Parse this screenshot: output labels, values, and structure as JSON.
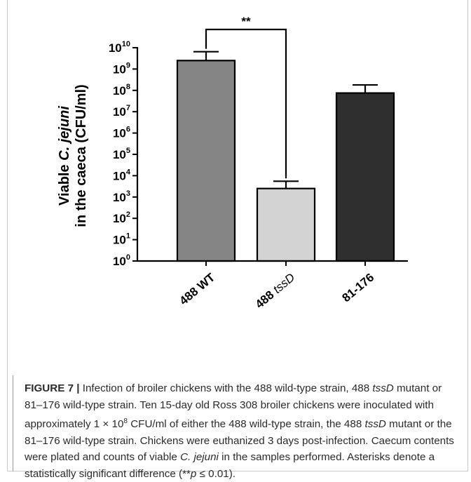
{
  "chart_data": {
    "type": "bar",
    "categories": [
      "488 WT",
      "488 tssD",
      "81-176"
    ],
    "category_parts": [
      {
        "prefix": "488 WT",
        "italic": ""
      },
      {
        "prefix": "488 ",
        "italic": "tssD"
      },
      {
        "prefix": "81-176",
        "italic": ""
      }
    ],
    "values": [
      2500000000.0,
      2500.0,
      75000000.0
    ],
    "error_upper": [
      6500000000.0,
      5500.0,
      180000000.0
    ],
    "bar_colors": [
      "#858585",
      "#d3d3d3",
      "#2f2f2f"
    ],
    "yscale": "log",
    "ylim": [
      1,
      10000000000.0
    ],
    "yticks": [
      {
        "base": "10",
        "exp": "0"
      },
      {
        "base": "10",
        "exp": "1"
      },
      {
        "base": "10",
        "exp": "2"
      },
      {
        "base": "10",
        "exp": "3"
      },
      {
        "base": "10",
        "exp": "4"
      },
      {
        "base": "10",
        "exp": "5"
      },
      {
        "base": "10",
        "exp": "6"
      },
      {
        "base": "10",
        "exp": "7"
      },
      {
        "base": "10",
        "exp": "8"
      },
      {
        "base": "10",
        "exp": "9"
      },
      {
        "base": "10",
        "exp": "10"
      }
    ],
    "ylabel_line1_prefix": "Viable ",
    "ylabel_line1_italic": "C. jejuni",
    "ylabel_line2": "in the caeca (CFU/ml)",
    "significance": {
      "between": [
        0,
        1
      ],
      "label": "**"
    },
    "grid": false,
    "legend": "none"
  },
  "caption": {
    "label": "FIGURE 7 |",
    "t1": " Infection of broiler chickens with the 488 wild-type strain, 488 ",
    "i1": "tssD",
    "t2": " mutant or 81–176 wild-type strain. Ten 15-day old Ross 308 broiler chickens were inoculated with approximately 1 × 10",
    "sup1": "8",
    "t3": " CFU/ml of either the 488 wild-type strain, the 488 ",
    "i2": "tssD",
    "t4": " mutant or the 81–176 wild-type strain. Chickens were euthanized 3 days post-infection. Caecum contents were plated and counts of viable ",
    "i3": "C. jejuni",
    "t5": " in the samples performed. Asterisks denote a statistically significant difference (**",
    "i4": "p",
    "t6": " ≤ 0.01)."
  }
}
